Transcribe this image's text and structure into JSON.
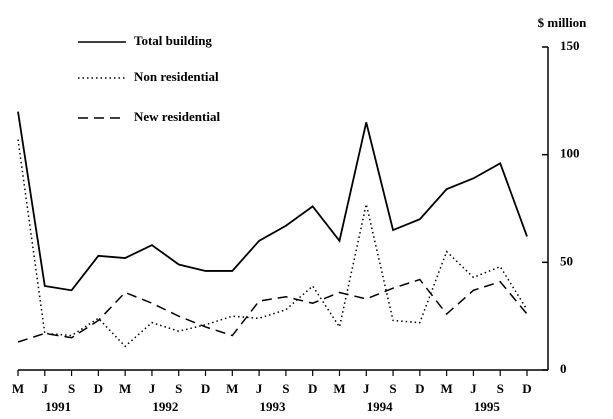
{
  "chart_data": {
    "type": "line",
    "y_label": "$ million",
    "categories": [
      "M",
      "J",
      "S",
      "D",
      "M",
      "J",
      "S",
      "D",
      "M",
      "J",
      "S",
      "D",
      "M",
      "J",
      "S",
      "D",
      "M",
      "J",
      "S",
      "D"
    ],
    "years": [
      "1991",
      "1992",
      "1993",
      "1994",
      "1995"
    ],
    "series": [
      {
        "name": "Total building",
        "color": "#000000",
        "style": "solid",
        "values": [
          120,
          39,
          37,
          53,
          52,
          58,
          49,
          46,
          46,
          60,
          67,
          76,
          60,
          115,
          65,
          70,
          84,
          89,
          96,
          62
        ]
      },
      {
        "name": "Non residential",
        "color": "#000000",
        "style": "dotted",
        "values": [
          107,
          17,
          16,
          24,
          11,
          22,
          18,
          21,
          25,
          24,
          28,
          39,
          20,
          77,
          23,
          22,
          55,
          43,
          48,
          28
        ]
      },
      {
        "name": "New residential",
        "color": "#000000",
        "style": "dashed",
        "values": [
          13,
          17,
          15,
          23,
          36,
          31,
          25,
          20,
          16,
          32,
          34,
          31,
          36,
          33,
          38,
          42,
          26,
          37,
          41,
          26
        ]
      }
    ],
    "ylim": [
      0,
      150
    ],
    "yticks": [
      0,
      50,
      100,
      150
    ]
  }
}
